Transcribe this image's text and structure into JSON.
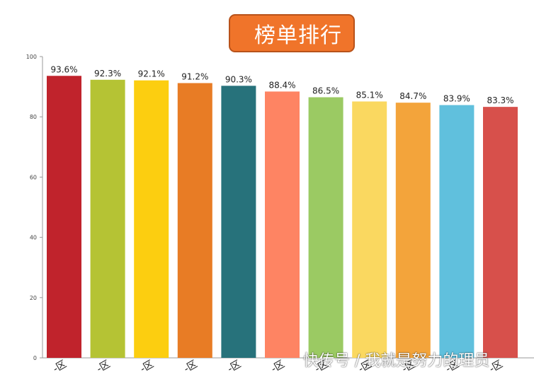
{
  "title": "榜单排行",
  "watermark": "快传号 / 我就是努力的理员",
  "chart_data": {
    "type": "bar",
    "title": "榜单排行",
    "xlabel": "",
    "ylabel": "",
    "ylim": [
      0,
      100
    ],
    "yticks": [
      0,
      20,
      40,
      60,
      80,
      100
    ],
    "grid": false,
    "categories": [
      "-区",
      "-区",
      "-区",
      "-区",
      "-区",
      "-区",
      "-区",
      "-区",
      "-区",
      "-区",
      "-区"
    ],
    "values": [
      93.6,
      92.3,
      92.1,
      91.2,
      90.3,
      88.4,
      86.5,
      85.1,
      84.7,
      83.9,
      83.3
    ],
    "labels": [
      "93.6%",
      "92.3%",
      "92.1%",
      "91.2%",
      "90.3%",
      "88.4%",
      "86.5%",
      "85.1%",
      "84.7%",
      "83.9%",
      "83.3%"
    ],
    "colors": [
      "#c0232c",
      "#b5c334",
      "#fcce10",
      "#e87c25",
      "#27727b",
      "#fe8463",
      "#9bca63",
      "#fad860",
      "#f3a43b",
      "#60c0dd",
      "#d7504b"
    ]
  }
}
